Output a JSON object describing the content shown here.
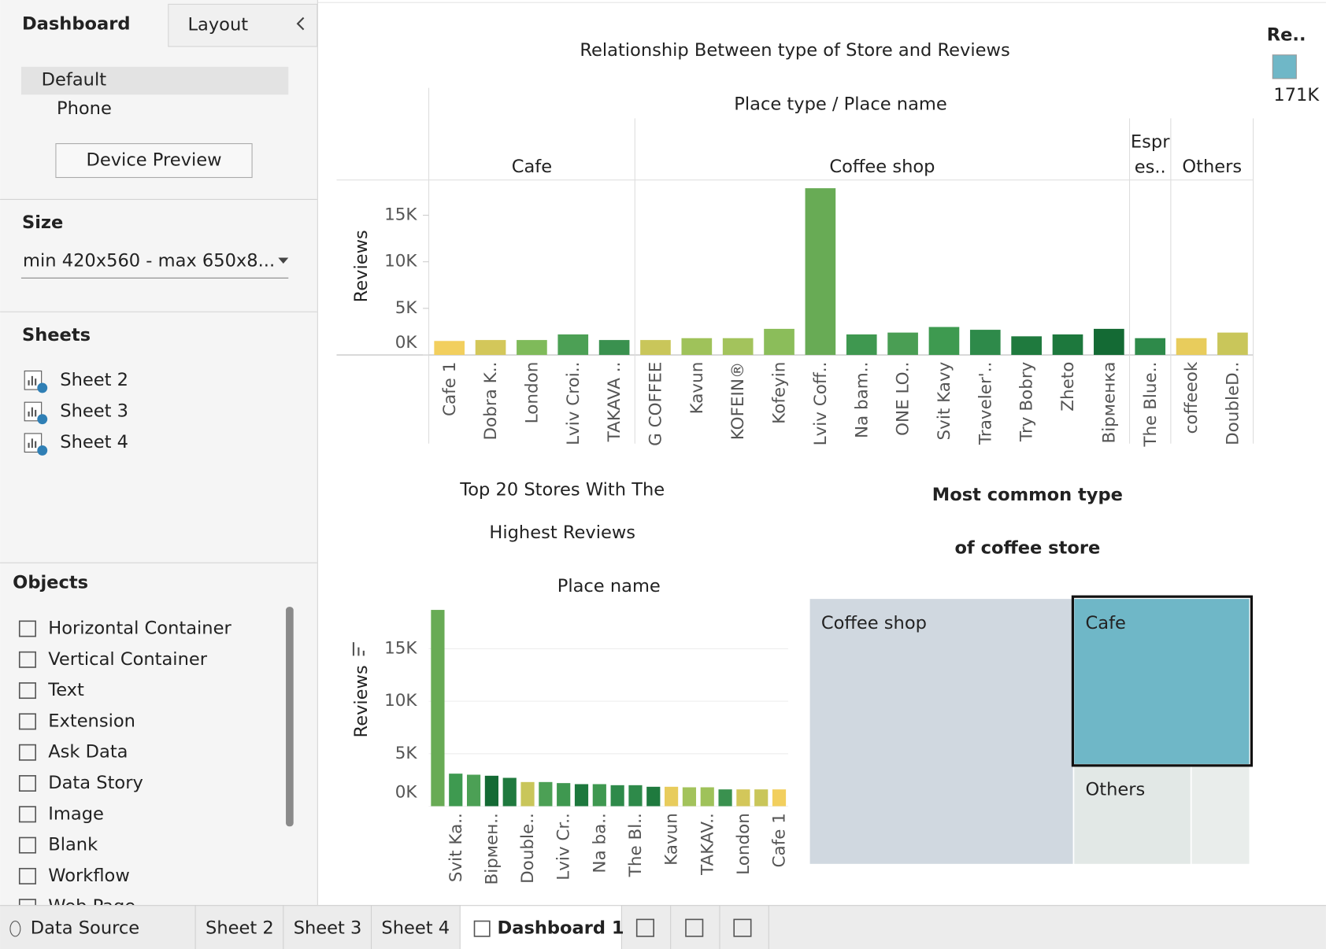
{
  "sidebar": {
    "tabs": [
      "Dashboard",
      "Layout"
    ],
    "devices": [
      "Default",
      "Phone"
    ],
    "device_preview": "Device Preview",
    "size_title": "Size",
    "size_value": "min 420x560 - max 650x8...",
    "sheets_title": "Sheets",
    "sheets": [
      "Sheet 2",
      "Sheet 3",
      "Sheet 4"
    ],
    "objects_title": "Objects",
    "objects": [
      "Horizontal Container",
      "Vertical Container",
      "Text",
      "Extension",
      "Ask Data",
      "Data Story",
      "Image",
      "Blank",
      "Workflow",
      "Web Page"
    ]
  },
  "bottom_tabs": [
    "Data Source",
    "Sheet 2",
    "Sheet 3",
    "Sheet 4",
    "Dashboard 1"
  ],
  "chart_data": [
    {
      "type": "grouped-bar",
      "title": "Relationship Between type of Store and Reviews",
      "header": "Place type  /  Place name",
      "y_label": "Reviews",
      "groups": [
        {
          "name": "Cafe",
          "categories": [
            "Cafe 1",
            "Dobra K..",
            "London",
            "Lviv Croi..",
            "TAKAVA .."
          ],
          "values": [
            1500,
            1600,
            1600,
            2200,
            1600
          ],
          "colors": [
            "#f2cf5e",
            "#d3c75a",
            "#7fba5a",
            "#4ca055",
            "#3a914f"
          ]
        },
        {
          "name": "Coffee shop",
          "categories": [
            "G COFFEE",
            "Kavun",
            "KOFEIN®",
            "Kofeyin",
            "Lviv Coff..",
            "Na bam..",
            "ONE LO..",
            "Svit Kavy",
            "Traveler'..",
            "Try Bobry",
            "Zheto",
            "Вірменка"
          ],
          "values": [
            1600,
            1800,
            1800,
            2800,
            17900,
            2200,
            2400,
            3000,
            2700,
            2000,
            2200,
            2800
          ],
          "colors": [
            "#c9c65a",
            "#9fc25a",
            "#a3c35c",
            "#8bbd5a",
            "#68ab55",
            "#3f9850",
            "#4a9e54",
            "#3e9a50",
            "#2e8a4a",
            "#1f7a3e",
            "#1d783d",
            "#146a34"
          ]
        },
        {
          "name": "Espr es..",
          "categories": [
            "The Blue.."
          ],
          "values": [
            1800
          ],
          "colors": [
            "#2e8a4a"
          ]
        },
        {
          "name": "Others",
          "categories": [
            "coffeeok",
            "DoubleD.."
          ],
          "values": [
            1800,
            2400
          ],
          "colors": [
            "#e8cc5c",
            "#c9c65a"
          ]
        }
      ],
      "ylim": [
        0,
        18600
      ],
      "yticks": [
        {
          "value": 0,
          "label": "0K"
        },
        {
          "value": 5000,
          "label": "5K"
        },
        {
          "value": 10000,
          "label": "10K"
        },
        {
          "value": 15000,
          "label": "15K"
        }
      ],
      "color_legend": {
        "title": "Re..",
        "label": "171K"
      }
    },
    {
      "type": "bar",
      "title": [
        "Top 20 Stores With The",
        "Highest Reviews"
      ],
      "header": "Place name",
      "y_label": "Reviews",
      "categories": [
        null,
        "Svit Ka..",
        null,
        "Вірмен..",
        null,
        "Double..",
        null,
        "Lviv Cr..",
        null,
        "Na ba..",
        null,
        "The Bl..",
        null,
        "Kavun",
        null,
        "TAKAV..",
        null,
        "London",
        null,
        "Cafe 1"
      ],
      "values": [
        18700,
        3100,
        3000,
        2900,
        2700,
        2300,
        2300,
        2200,
        2100,
        2100,
        2000,
        2000,
        1850,
        1850,
        1800,
        1800,
        1600,
        1600,
        1600,
        1600
      ],
      "colors": [
        "#68ab55",
        "#3e9a50",
        "#4ca055",
        "#146a34",
        "#1f7a3e",
        "#c9c65a",
        "#4ca055",
        "#3f9850",
        "#1d783d",
        "#3f9850",
        "#2e8a4a",
        "#2e8a4a",
        "#1f7a3e",
        "#e8cc5c",
        "#a3c35c",
        "#9fc25a",
        "#3a914f",
        "#d3c75a",
        "#c9c65a",
        "#f2cf5e"
      ],
      "ylim": [
        0,
        19000
      ],
      "yticks": [
        {
          "value": 0,
          "label": "0K"
        },
        {
          "value": 5000,
          "label": "5K"
        },
        {
          "value": 10000,
          "label": "10K"
        },
        {
          "value": 15000,
          "label": "15K"
        }
      ],
      "grid": true
    },
    {
      "type": "treemap",
      "title": [
        "Most common type",
        "of coffee store"
      ],
      "categories": [
        "Coffee shop",
        "Cafe",
        "Others",
        null
      ],
      "values": [
        12,
        5,
        2,
        1
      ],
      "colors": [
        "#d0d8e0",
        "#6fb7c7",
        "#e2e8e6",
        "#e9edeb"
      ]
    }
  ]
}
